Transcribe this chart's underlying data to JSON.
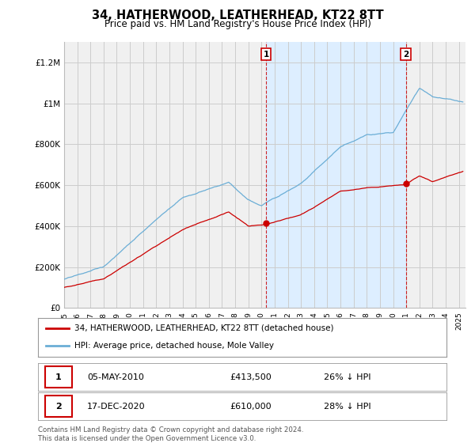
{
  "title": "34, HATHERWOOD, LEATHERHEAD, KT22 8TT",
  "subtitle": "Price paid vs. HM Land Registry's House Price Index (HPI)",
  "ylabel_ticks": [
    "£0",
    "£200K",
    "£400K",
    "£600K",
    "£800K",
    "£1M",
    "£1.2M"
  ],
  "ytick_vals": [
    0,
    200000,
    400000,
    600000,
    800000,
    1000000,
    1200000
  ],
  "ylim": [
    0,
    1300000
  ],
  "xlim_start": 1995,
  "xlim_end": 2025.5,
  "transaction1": {
    "date_x": 2010.35,
    "price": 413500,
    "label": "1",
    "date_str": "05-MAY-2010",
    "pct": "26% ↓ HPI"
  },
  "transaction2": {
    "date_x": 2020.96,
    "price": 610000,
    "label": "2",
    "date_str": "17-DEC-2020",
    "pct": "28% ↓ HPI"
  },
  "hpi_color": "#6baed6",
  "shade_color": "#ddeeff",
  "price_color": "#cc0000",
  "vline_color": "#cc0000",
  "legend_label1": "34, HATHERWOOD, LEATHERHEAD, KT22 8TT (detached house)",
  "legend_label2": "HPI: Average price, detached house, Mole Valley",
  "table_row1": [
    "1",
    "05-MAY-2010",
    "£413,500",
    "26% ↓ HPI"
  ],
  "table_row2": [
    "2",
    "17-DEC-2020",
    "£610,000",
    "28% ↓ HPI"
  ],
  "footer": "Contains HM Land Registry data © Crown copyright and database right 2024.\nThis data is licensed under the Open Government Licence v3.0.",
  "background_color": "#ffffff",
  "plot_bg_color": "#f0f0f0"
}
